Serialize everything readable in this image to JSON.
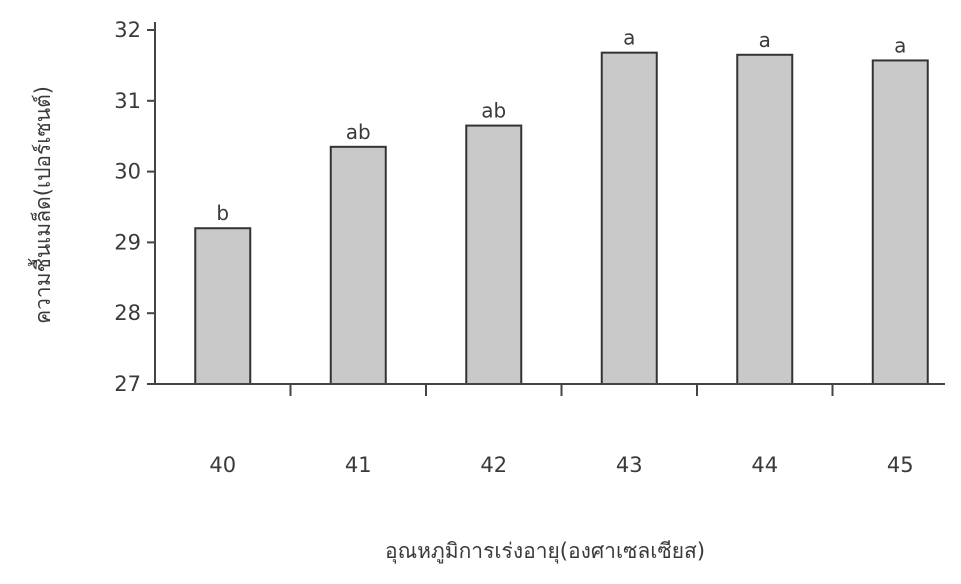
{
  "chart_data": {
    "type": "bar",
    "xlabel": "อุณหภูมิการเร่งอายุ(องศาเซลเซียส)",
    "ylabel": "ความชื้นเมล็ด(เปอร์เซนต์)",
    "categories": [
      "40",
      "41",
      "42",
      "43",
      "44",
      "45"
    ],
    "values": [
      29.2,
      30.35,
      30.65,
      31.68,
      31.65,
      31.57
    ],
    "significance_labels": [
      "b",
      "ab",
      "ab",
      "a",
      "a",
      "a"
    ],
    "yticks": [
      "27",
      "28",
      "29",
      "30",
      "31",
      "32"
    ],
    "ylim": [
      27,
      32
    ],
    "grid": false,
    "bar_color": "#c9c9c9",
    "bar_edge_color": "#333333"
  }
}
